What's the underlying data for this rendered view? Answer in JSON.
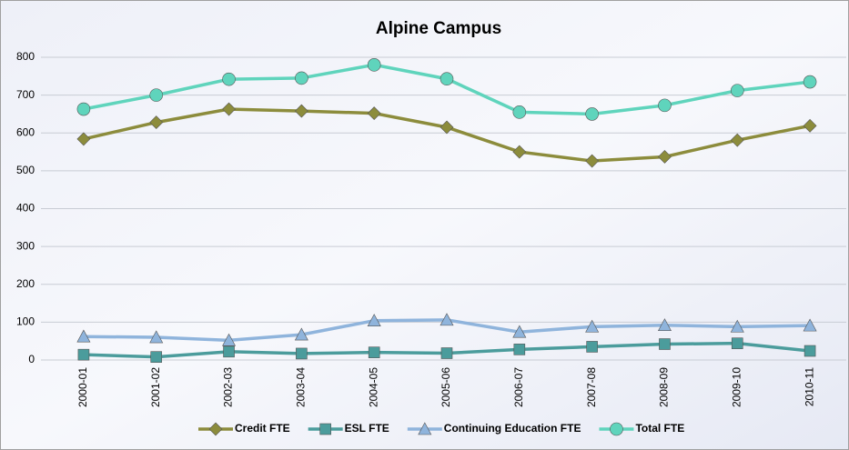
{
  "chart_data": {
    "type": "line",
    "title": "Alpine Campus",
    "categories": [
      "2000-01",
      "2001-02",
      "2002-03",
      "2003-04",
      "2004-05",
      "2005-06",
      "2006-07",
      "2007-08",
      "2008-09",
      "2009-10",
      "2010-11"
    ],
    "series": [
      {
        "name": "Credit FTE",
        "color": "#8c8c3c",
        "marker": "diamond",
        "values": [
          584,
          628,
          663,
          658,
          652,
          615,
          550,
          526,
          537,
          581,
          619
        ]
      },
      {
        "name": "ESL FTE",
        "color": "#4b9c9c",
        "marker": "square",
        "values": [
          14,
          8,
          22,
          17,
          20,
          18,
          28,
          35,
          42,
          44,
          24
        ]
      },
      {
        "name": "Continuing Education FTE",
        "color": "#8fb4dc",
        "marker": "triangle",
        "values": [
          62,
          60,
          52,
          67,
          104,
          106,
          74,
          88,
          92,
          88,
          91
        ]
      },
      {
        "name": "Total FTE",
        "color": "#5fd4bc",
        "marker": "circle",
        "values": [
          663,
          700,
          742,
          745,
          780,
          743,
          655,
          650,
          673,
          712,
          735
        ]
      }
    ],
    "ylim": [
      0,
      800
    ],
    "yticks": [
      0,
      100,
      200,
      300,
      400,
      500,
      600,
      700,
      800
    ],
    "grid": true,
    "legend": "bottom"
  }
}
